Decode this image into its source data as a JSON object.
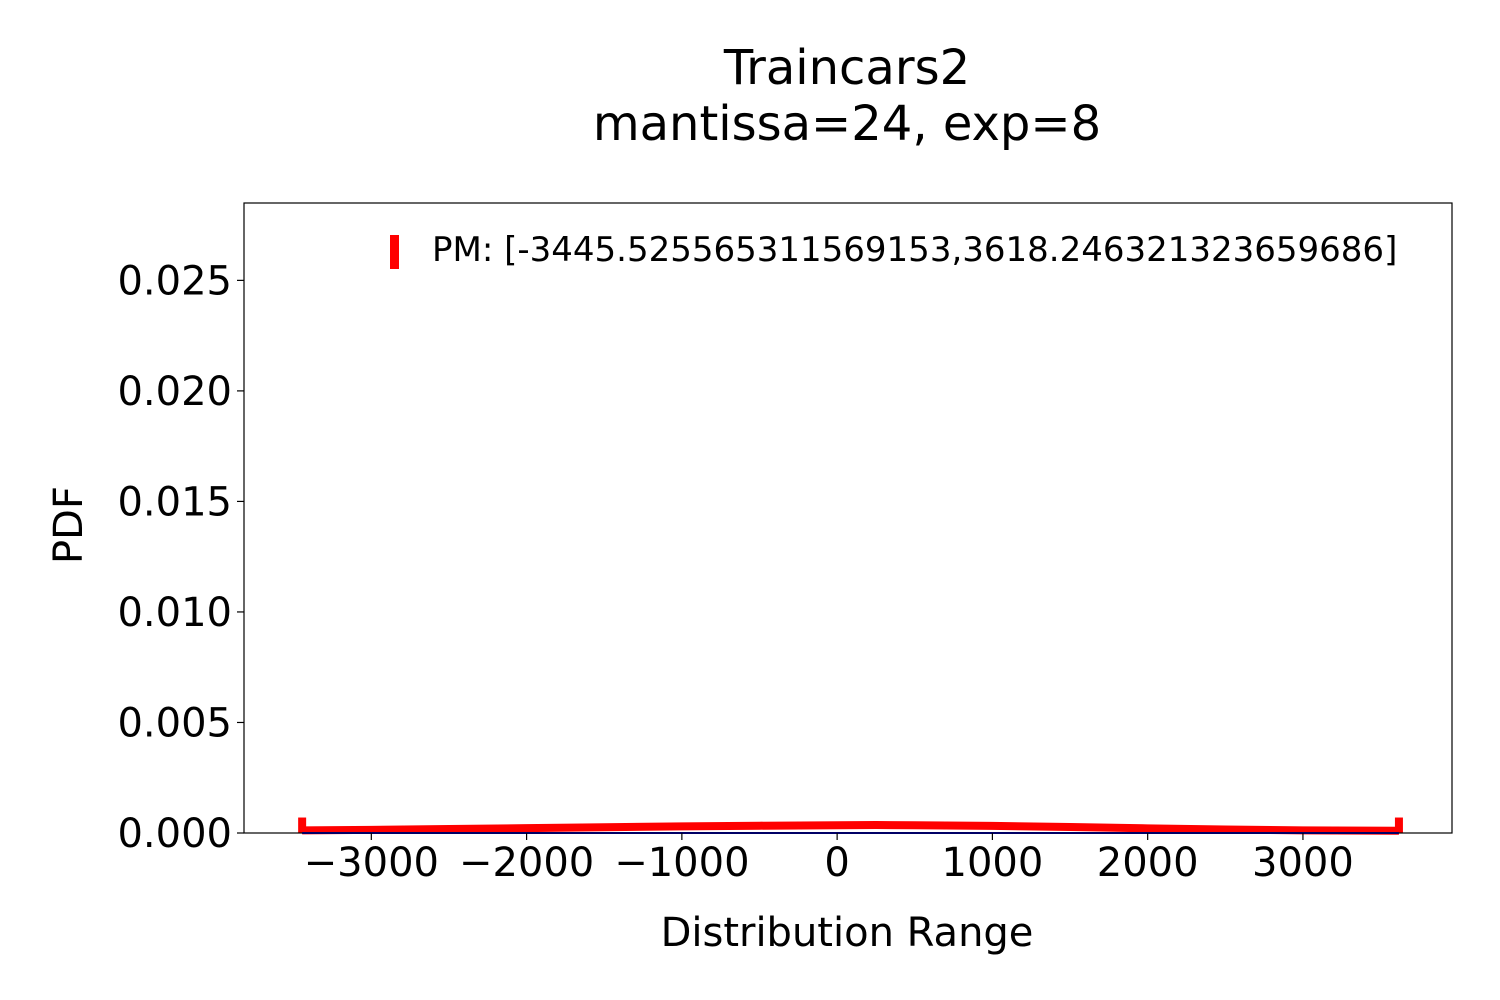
{
  "chart_data": {
    "type": "line",
    "title": "Traincars2",
    "subtitle": "mantissa=24, exp=8",
    "xlabel": "Distribution Range",
    "ylabel": "PDF",
    "xlim": [
      -3820,
      3960
    ],
    "ylim": [
      0,
      0.0285
    ],
    "xticks": [
      -3000,
      -2000,
      -1000,
      0,
      1000,
      2000,
      3000
    ],
    "xtick_labels": [
      "−3000",
      "−2000",
      "−1000",
      "0",
      "1000",
      "2000",
      "3000"
    ],
    "yticks": [
      0.0,
      0.005,
      0.01,
      0.015,
      0.02,
      0.025
    ],
    "ytick_labels": [
      "0.000",
      "0.005",
      "0.010",
      "0.015",
      "0.020",
      "0.025"
    ],
    "grid": false,
    "legend_position": "top-right",
    "series": [
      {
        "name": "PM: [-3445.525565311569153,3618.246321323659686]",
        "color": "#ff0000",
        "style": "pdf-curve",
        "x": [
          -3445.53,
          -3000,
          -2500,
          -2000,
          -1500,
          -1000,
          -500,
          0,
          250,
          500,
          1000,
          1500,
          2000,
          2500,
          3000,
          3618.25
        ],
        "y": [
          0.00012,
          0.00014,
          0.00018,
          0.00022,
          0.00026,
          0.0003,
          0.00033,
          0.00035,
          0.00036,
          0.00035,
          0.00032,
          0.00027,
          0.00021,
          0.00016,
          0.00012,
          0.0001
        ],
        "bounds": [
          -3445.525565311569,
          3618.2463213236597
        ],
        "bound_marker_height": 0.0007
      },
      {
        "color": "#0000ff",
        "style": "underlying-line",
        "x": [
          -3445.53,
          3618.25
        ],
        "y": [
          0.0,
          0.0
        ]
      }
    ]
  }
}
